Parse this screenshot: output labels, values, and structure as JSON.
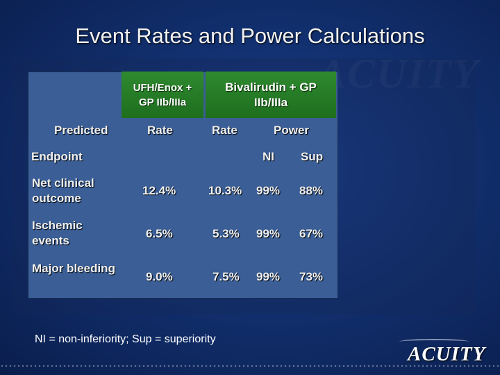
{
  "slide": {
    "title": "Event Rates and Power Calculations",
    "footnote": "NI = non-inferiority; Sup = superiority",
    "logo": "ACUITY"
  },
  "table": {
    "group_headers": {
      "ufh": "UFH/Enox + GP IIb/IIIa",
      "bival": "Bivalirudin + GP IIb/IIIa"
    },
    "predicted_label": "Predicted",
    "endpoint_label": "Endpoint",
    "sub_headers": {
      "rate_ufh": "Rate",
      "rate_bival": "Rate",
      "power": "Power",
      "ni": "NI",
      "sup": "Sup"
    },
    "rows": [
      {
        "label": "Net clinical outcome",
        "rate_ufh": "12.4%",
        "rate_bival": "10.3%",
        "ni": "99%",
        "sup": "88%"
      },
      {
        "label": "Ischemic events",
        "rate_ufh": "6.5%",
        "rate_bival": "5.3%",
        "ni": "99%",
        "sup": "67%"
      },
      {
        "label": "Major bleeding",
        "rate_ufh": "9.0%",
        "rate_bival": "7.5%",
        "ni": "99%",
        "sup": "73%"
      }
    ]
  },
  "colors": {
    "background": "#12306f",
    "table_body": "#3a5e95",
    "header_green": "#2f8a2f"
  }
}
